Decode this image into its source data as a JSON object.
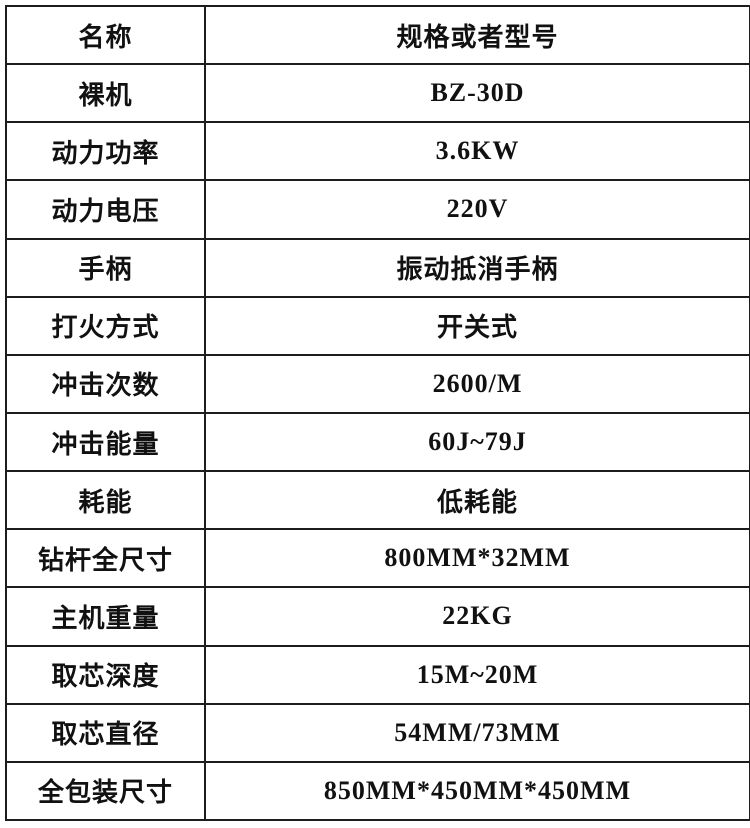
{
  "table": {
    "border_color": "#1d1d1d",
    "text_color": "#111111",
    "columns": [
      "名称",
      "规格或者型号"
    ],
    "rows": [
      {
        "label": "名称",
        "value": "规格或者型号"
      },
      {
        "label": "裸机",
        "value": "BZ-30D"
      },
      {
        "label": "动力功率",
        "value": "3.6KW"
      },
      {
        "label": "动力电压",
        "value": "220V"
      },
      {
        "label": "手柄",
        "value": "振动抵消手柄"
      },
      {
        "label": "打火方式",
        "value": "开关式"
      },
      {
        "label": "冲击次数",
        "value": "2600/M"
      },
      {
        "label": "冲击能量",
        "value": "60J~79J"
      },
      {
        "label": "耗能",
        "value": "低耗能"
      },
      {
        "label": "钻杆全尺寸",
        "value": "800MM*32MM"
      },
      {
        "label": "主机重量",
        "value": "22KG"
      },
      {
        "label": "取芯深度",
        "value": "15M~20M"
      },
      {
        "label": "取芯直径",
        "value": "54MM/73MM"
      },
      {
        "label": "全包装尺寸",
        "value": "850MM*450MM*450MM"
      }
    ]
  }
}
